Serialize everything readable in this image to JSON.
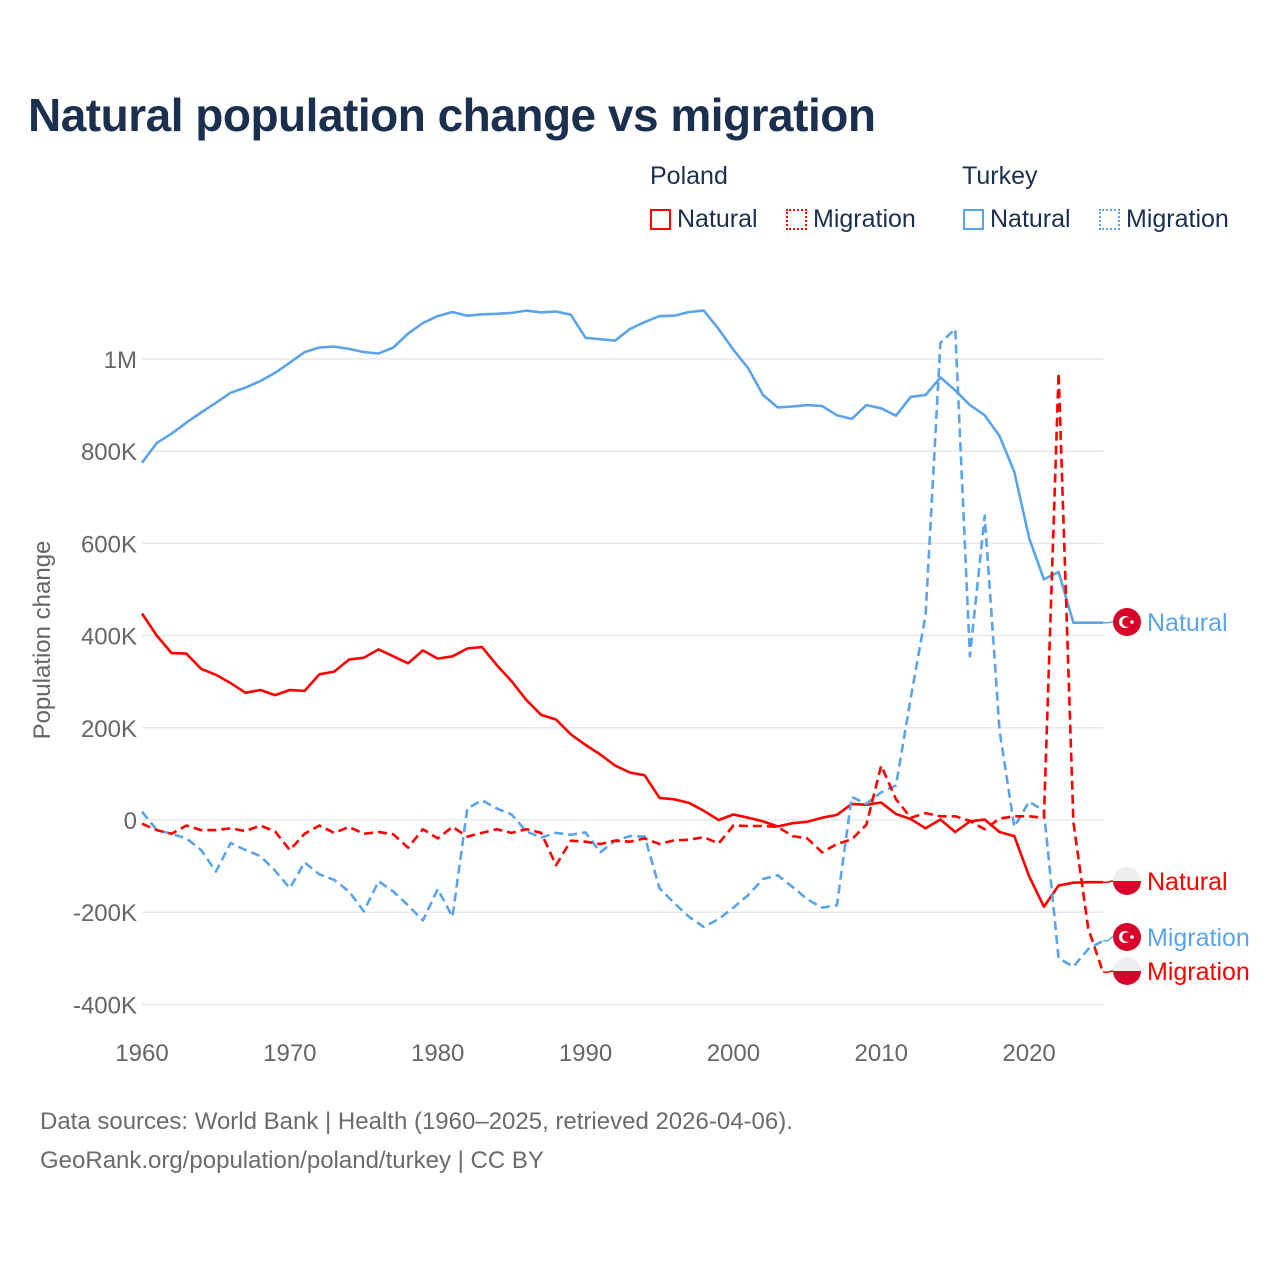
{
  "chart_data": {
    "type": "line",
    "title": "Natural population change vs migration",
    "xlabel": "",
    "ylabel": "Population change",
    "xlim": [
      1960,
      2025
    ],
    "ylim": [
      -400000,
      1100000
    ],
    "grid": true,
    "x_ticks": [
      1960,
      1970,
      1980,
      1990,
      2000,
      2010,
      2020
    ],
    "x_tick_labels": [
      "1960",
      "1970",
      "1980",
      "1990",
      "2000",
      "2010",
      "2020"
    ],
    "y_ticks": [
      -400000,
      -200000,
      0,
      200000,
      400000,
      600000,
      800000,
      1000000
    ],
    "y_tick_labels": [
      "-400K",
      "-200K",
      "0",
      "200K",
      "400K",
      "600K",
      "800K",
      "1M"
    ],
    "legend": {
      "placement": "top-right",
      "groups": [
        {
          "label": "Poland",
          "items": [
            "Natural",
            "Migration"
          ]
        },
        {
          "label": "Turkey",
          "items": [
            "Natural",
            "Migration"
          ]
        }
      ]
    },
    "x": [
      1960,
      1961,
      1962,
      1963,
      1964,
      1965,
      1966,
      1967,
      1968,
      1969,
      1970,
      1971,
      1972,
      1973,
      1974,
      1975,
      1976,
      1977,
      1978,
      1979,
      1980,
      1981,
      1982,
      1983,
      1984,
      1985,
      1986,
      1987,
      1988,
      1989,
      1990,
      1991,
      1992,
      1993,
      1994,
      1995,
      1996,
      1997,
      1998,
      1999,
      2000,
      2001,
      2002,
      2003,
      2004,
      2005,
      2006,
      2007,
      2008,
      2009,
      2010,
      2011,
      2012,
      2013,
      2014,
      2015,
      2016,
      2017,
      2018,
      2019,
      2020,
      2021,
      2022,
      2023,
      2024,
      2025
    ],
    "series": [
      {
        "name": "Turkey Natural",
        "country": "Turkey",
        "kind": "Natural",
        "color": "#5ba4ea",
        "dash": false,
        "end_label": "Natural",
        "values": [
          775000,
          818000,
          838000,
          862000,
          884000,
          905000,
          927000,
          938000,
          952000,
          970000,
          992000,
          1015000,
          1025000,
          1027000,
          1022000,
          1015000,
          1012000,
          1025000,
          1055000,
          1078000,
          1093000,
          1102000,
          1094000,
          1097000,
          1098000,
          1100000,
          1105000,
          1101000,
          1103000,
          1096000,
          1046000,
          1043000,
          1040000,
          1065000,
          1080000,
          1093000,
          1094000,
          1102000,
          1105000,
          1065000,
          1020000,
          980000,
          922000,
          895000,
          897000,
          900000,
          898000,
          878000,
          870000,
          900000,
          893000,
          877000,
          918000,
          922000,
          960000,
          932000,
          900000,
          878000,
          833000,
          755000,
          612000,
          522000,
          538000,
          428000,
          428000,
          428000
        ]
      },
      {
        "name": "Poland Natural",
        "country": "Poland",
        "kind": "Natural",
        "color": "#ff0000",
        "dash": false,
        "end_label": "Natural",
        "values": [
          448000,
          400000,
          362000,
          361000,
          328000,
          315000,
          297000,
          276000,
          282000,
          271000,
          282000,
          280000,
          316000,
          322000,
          348000,
          352000,
          370000,
          355000,
          340000,
          368000,
          350000,
          355000,
          372000,
          375000,
          336000,
          301000,
          260000,
          228000,
          218000,
          186000,
          163000,
          142000,
          118000,
          103000,
          97000,
          48000,
          45000,
          37000,
          20000,
          0,
          12000,
          5000,
          -3000,
          -14000,
          -7000,
          -4000,
          5000,
          11000,
          35000,
          33000,
          38000,
          13000,
          2000,
          -18000,
          1000,
          -26000,
          -3000,
          1000,
          -26000,
          -35000,
          -122000,
          -188000,
          -142000,
          -136000,
          -135000,
          -135000
        ]
      },
      {
        "name": "Turkey Migration",
        "country": "Turkey",
        "kind": "Migration",
        "color": "#5ba4ea",
        "dash": true,
        "end_label": "Migration",
        "values": [
          18000,
          -22000,
          -30000,
          -40000,
          -65000,
          -112000,
          -50000,
          -65000,
          -78000,
          -110000,
          -148000,
          -92000,
          -118000,
          -130000,
          -155000,
          -198000,
          -133000,
          -155000,
          -185000,
          -218000,
          -150000,
          -210000,
          25000,
          43000,
          25000,
          12000,
          -25000,
          -38000,
          -28000,
          -32000,
          -27000,
          -70000,
          -45000,
          -35000,
          -36000,
          -148000,
          -180000,
          -210000,
          -232000,
          -215000,
          -190000,
          -163000,
          -128000,
          -120000,
          -145000,
          -172000,
          -190000,
          -185000,
          50000,
          35000,
          60000,
          75000,
          265000,
          445000,
          1035000,
          1065000,
          355000,
          660000,
          195000,
          -15000,
          40000,
          20000,
          -300000,
          -318000,
          -280000,
          -262000
        ]
      },
      {
        "name": "Poland Migration",
        "country": "Poland",
        "kind": "Migration",
        "color": "#ff0000",
        "dash": true,
        "end_label": "Migration",
        "values": [
          -8000,
          -22000,
          -30000,
          -12000,
          -22000,
          -22000,
          -18000,
          -24000,
          -12000,
          -25000,
          -65000,
          -30000,
          -12000,
          -28000,
          -15000,
          -30000,
          -26000,
          -31000,
          -60000,
          -20000,
          -40000,
          -15000,
          -36000,
          -28000,
          -20000,
          -28000,
          -20000,
          -28000,
          -98000,
          -45000,
          -47000,
          -52000,
          -45000,
          -47000,
          -40000,
          -52000,
          -44000,
          -43000,
          -37000,
          -51000,
          -12000,
          -13000,
          -13000,
          -15000,
          -35000,
          -40000,
          -70000,
          -52000,
          -42000,
          -10000,
          118000,
          45000,
          5000,
          15000,
          8000,
          8000,
          -2000,
          -20000,
          3000,
          8000,
          8000,
          5000,
          970000,
          -5000,
          -235000,
          -330000
        ]
      }
    ]
  },
  "legend": {
    "poland": "Poland",
    "turkey": "Turkey",
    "natural": "Natural",
    "migration": "Migration"
  },
  "footer": {
    "line1": "Data sources: World Bank | Health (1960–2025, retrieved 2026-04-06).",
    "line2": "GeoRank.org/population/poland/turkey | CC BY"
  },
  "colors": {
    "poland": "#ff0000",
    "turkey": "#5ba4ea",
    "title": "#1b2f4e",
    "flag": "#d9002a"
  }
}
